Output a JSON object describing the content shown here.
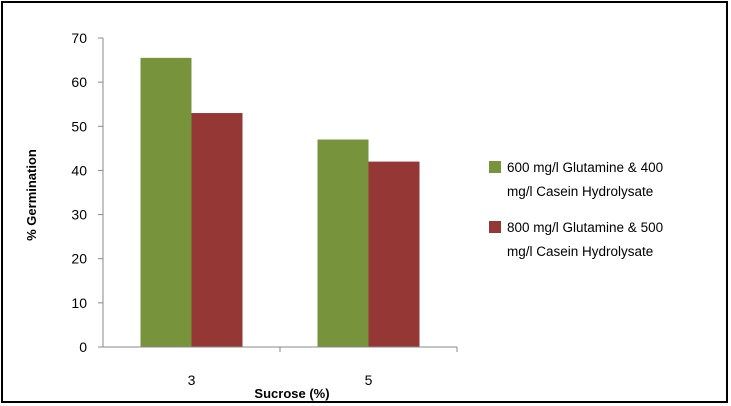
{
  "chart_data": {
    "type": "bar",
    "title": "",
    "xlabel": "Sucrose (%)",
    "ylabel": "% Germination",
    "categories": [
      "3",
      "5"
    ],
    "series": [
      {
        "name": "600 mg/l Glutamine & 400 mg/l Casein Hydrolysate",
        "legend_lines": [
          "600 mg/l Glutamine & 400",
          "mg/l Casein Hydrolysate"
        ],
        "color": "#77933C",
        "values": [
          65.5,
          47
        ]
      },
      {
        "name": "800 mg/l Glutamine & 500 mg/l Casein Hydrolysate",
        "legend_lines": [
          "800 mg/l Glutamine & 500",
          "mg/l Casein Hydrolysate"
        ],
        "color": "#953735",
        "values": [
          53,
          42
        ]
      }
    ],
    "ylim": [
      0,
      70
    ],
    "yticks": [
      0,
      10,
      20,
      30,
      40,
      50,
      60,
      70
    ],
    "grid": false,
    "legend_position": "right"
  }
}
